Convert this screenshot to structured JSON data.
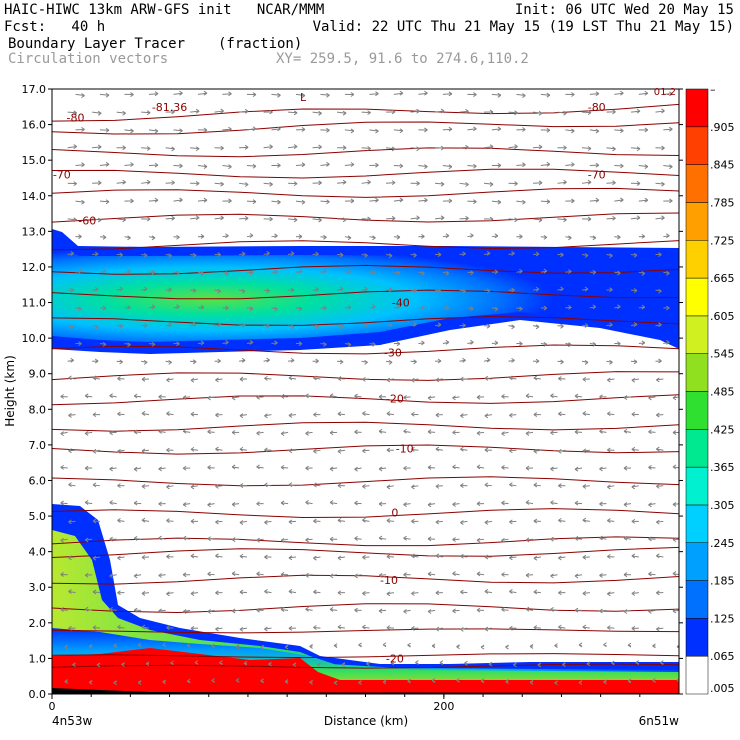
{
  "header": {
    "line1_left": "HAIC-HIWC 13km ARW-GFS init   NCAR/MMM",
    "line1_right": "Init: 06 UTC Wed 20 May 15",
    "line2_left": "Fcst:   40 h",
    "line2_right": "Valid: 22 UTC Thu 21 May 15 (19 LST Thu 21 May 15)",
    "field_name": "Boundary Layer Tracer",
    "field_units": "(fraction)",
    "vector_label": "Circulation vectors",
    "xy_label": "XY= 259.5, 91.6 to 274.6,110.2"
  },
  "chart_data": {
    "type": "heatmap",
    "xlabel": "Distance (km)",
    "ylabel": "Height (km)",
    "xlim": [
      0,
      320
    ],
    "ylim": [
      0,
      17
    ],
    "x_ticks": [
      {
        "value": 0,
        "label": "0"
      },
      {
        "value": 200,
        "label": "200"
      }
    ],
    "x_end_labels": {
      "left": "4n53w",
      "right": "6n51w"
    },
    "y_ticks": [
      "0.0",
      "1.0",
      "2.0",
      "3.0",
      "4.0",
      "5.0",
      "6.0",
      "7.0",
      "8.0",
      "9.0",
      "10.0",
      "11.0",
      "12.0",
      "13.0",
      "14.0",
      "15.0",
      "16.0",
      "17.0"
    ],
    "colorbar": {
      "labels": [
        ".005",
        ".065",
        ".125",
        ".185",
        ".245",
        ".305",
        ".365",
        ".425",
        ".485",
        ".545",
        ".605",
        ".665",
        ".725",
        ".785",
        ".845",
        ".905",
        "–"
      ],
      "colors": [
        "#ffffff",
        "#0030ff",
        "#0070ff",
        "#00a0ff",
        "#00d0ff",
        "#00f0d0",
        "#00e890",
        "#30e030",
        "#90e020",
        "#d0f020",
        "#ffff00",
        "#ffd000",
        "#ffa000",
        "#ff7000",
        "#ff4000",
        "#ff0000"
      ]
    },
    "temperature_contours": [
      {
        "label": "-81.36",
        "x": 60,
        "y": 16.5
      },
      {
        "label": "-80",
        "x": 12,
        "y": 16.2
      },
      {
        "label": "-80",
        "x": 278,
        "y": 16.5
      },
      {
        "label": "-70",
        "x": 5,
        "y": 14.6
      },
      {
        "label": "-70",
        "x": 278,
        "y": 14.6
      },
      {
        "label": "-60",
        "x": 18,
        "y": 13.3
      },
      {
        "label": "-40",
        "x": 178,
        "y": 11.0
      },
      {
        "label": "-30",
        "x": 174,
        "y": 9.6
      },
      {
        "label": "-20",
        "x": 175,
        "y": 8.3
      },
      {
        "label": "-10",
        "x": 180,
        "y": 6.9
      },
      {
        "label": "0",
        "x": 175,
        "y": 5.1
      },
      {
        "label": "-10",
        "x": 172,
        "y": 3.2
      },
      {
        "label": "-20",
        "x": 175,
        "y": 1.0
      }
    ],
    "corner_low_label": "L",
    "corner_value_label": "01.2"
  }
}
